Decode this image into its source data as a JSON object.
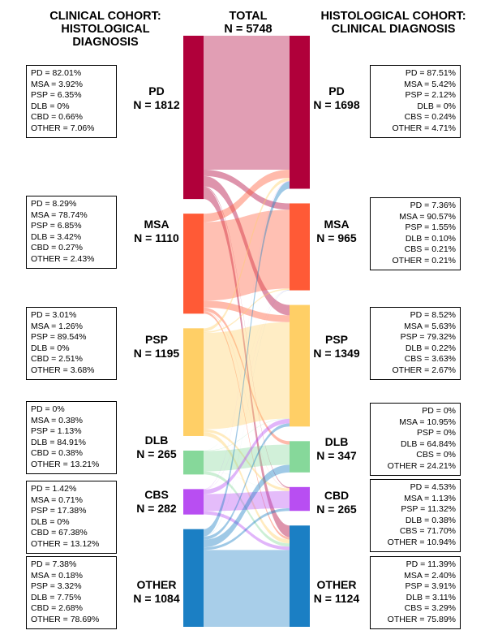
{
  "headers": {
    "left": [
      "CLINICAL COHORT:",
      "HISTOLOGICAL DIAGNOSIS"
    ],
    "center": [
      "TOTAL",
      "N = 5748"
    ],
    "right": [
      "HISTOLOGICAL COHORT:",
      "CLINICAL DIAGNOSIS"
    ]
  },
  "left_nodes": [
    {
      "name": "PD",
      "n_label": "N = 1812",
      "color": "#b0003a",
      "box": [
        "PD = 82.01%",
        "MSA = 3.92%",
        "PSP = 6.35%",
        "DLB = 0%",
        "CBD = 0.66%",
        "OTHER = 7.06%"
      ]
    },
    {
      "name": "MSA",
      "n_label": "N = 1110",
      "color": "#ff5a36",
      "box": [
        "PD = 8.29%",
        "MSA = 78.74%",
        "PSP = 6.85%",
        "DLB = 3.42%",
        "CBD = 0.27%",
        "OTHER = 2.43%"
      ]
    },
    {
      "name": "PSP",
      "n_label": "N = 1195",
      "color": "#ffcf66",
      "box": [
        "PD = 3.01%",
        "MSA = 1.26%",
        "PSP = 89.54%",
        "DLB = 0%",
        "CBD = 2.51%",
        "OTHER = 3.68%"
      ]
    },
    {
      "name": "DLB",
      "n_label": "N = 265",
      "color": "#86d89a",
      "box": [
        "PD = 0%",
        "MSA = 0.38%",
        "PSP = 1.13%",
        "DLB = 84.91%",
        "CBD = 0.38%",
        "OTHER = 13.21%"
      ]
    },
    {
      "name": "CBS",
      "n_label": "N = 282",
      "color": "#b84ef2",
      "box": [
        "PD = 1.42%",
        "MSA = 0.71%",
        "PSP = 17.38%",
        "DLB = 0%",
        "CBD = 67.38%",
        "OTHER = 13.12%"
      ]
    },
    {
      "name": "OTHER",
      "n_label": "N = 1084",
      "color": "#1b7fc4",
      "box": [
        "PD = 7.38%",
        "MSA = 0.18%",
        "PSP = 3.32%",
        "DLB = 7.75%",
        "CBD = 2.68%",
        "OTHER = 78.69%"
      ]
    }
  ],
  "right_nodes": [
    {
      "name": "PD",
      "n_label": "N = 1698",
      "color": "#b0003a",
      "box": [
        "PD = 87.51%",
        "MSA = 5.42%",
        "PSP = 2.12%",
        "DLB = 0%",
        "CBS = 0.24%",
        "OTHER = 4.71%"
      ]
    },
    {
      "name": "MSA",
      "n_label": "N = 965",
      "color": "#ff5a36",
      "box": [
        "PD = 7.36%",
        "MSA = 90.57%",
        "PSP = 1.55%",
        "DLB = 0.10%",
        "CBS = 0.21%",
        "OTHER = 0.21%"
      ]
    },
    {
      "name": "PSP",
      "n_label": "N = 1349",
      "color": "#ffcf66",
      "box": [
        "PD = 8.52%",
        "MSA = 5.63%",
        "PSP = 79.32%",
        "DLB = 0.22%",
        "CBS = 3.63%",
        "OTHER = 2.67%"
      ]
    },
    {
      "name": "DLB",
      "n_label": "N = 347",
      "color": "#86d89a",
      "box": [
        "PD = 0%",
        "MSA = 10.95%",
        "PSP = 0%",
        "DLB = 64.84%",
        "CBS = 0%",
        "OTHER = 24.21%"
      ]
    },
    {
      "name": "CBD",
      "n_label": "N = 265",
      "color": "#b84ef2",
      "box": [
        "PD = 4.53%",
        "MSA = 1.13%",
        "PSP = 11.32%",
        "DLB = 0.38%",
        "CBS = 71.70%",
        "OTHER = 10.94%"
      ]
    },
    {
      "name": "OTHER",
      "n_label": "N = 1124",
      "color": "#1b7fc4",
      "box": [
        "PD = 11.39%",
        "MSA = 2.40%",
        "PSP = 3.91%",
        "DLB = 3.11%",
        "CBS = 3.29%",
        "OTHER = 75.89%"
      ]
    }
  ],
  "flows": [
    [
      1486,
      71,
      115,
      0,
      12,
      128
    ],
    [
      92,
      874,
      76,
      38,
      3,
      27
    ],
    [
      36,
      15,
      1070,
      0,
      30,
      44
    ],
    [
      0,
      1,
      3,
      225,
      1,
      35
    ],
    [
      4,
      2,
      49,
      0,
      190,
      37
    ],
    [
      80,
      2,
      36,
      84,
      29,
      853
    ]
  ]
}
